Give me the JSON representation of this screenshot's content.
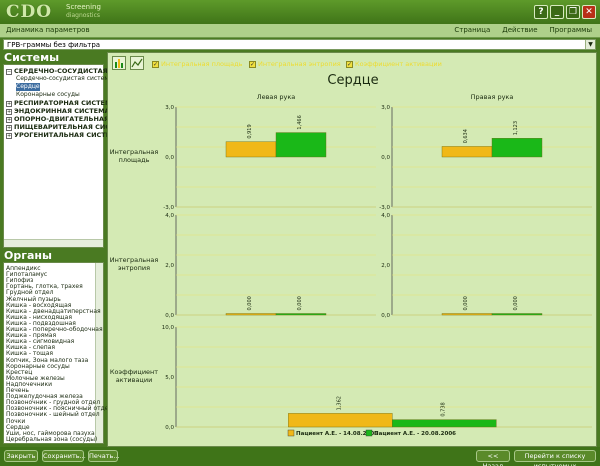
{
  "app": {
    "logo_text": "CDO",
    "logo_sub_top": "Screening",
    "logo_sub_bottom": "diagnostics",
    "window_title": "Динамика параметров",
    "menus": [
      "Страница",
      "Действие",
      "Программы"
    ],
    "window_buttons": {
      "help": "?",
      "minimize": "_",
      "restore": "❐",
      "close": "✕"
    }
  },
  "filter": {
    "value": "ГРВ-граммы без фильтра"
  },
  "sidebar": {
    "systems_title": "Системы",
    "systems": [
      {
        "label": "СЕРДЕЧНО-СОСУДИСТАЯ СИС",
        "expanded": true,
        "children": [
          {
            "label": "Сердечно-сосудистая система",
            "selected": false
          },
          {
            "label": "Сердце",
            "selected": true
          },
          {
            "label": "Коронарные сосуды",
            "selected": false
          }
        ]
      },
      {
        "label": "РЕСПИРАТОРНАЯ СИСТЕМА",
        "expanded": false
      },
      {
        "label": "ЭНДОКРИННАЯ СИСТЕМА",
        "expanded": false
      },
      {
        "label": "ОПОРНО-ДВИГАТЕЛЬНАЯ СИС",
        "expanded": false
      },
      {
        "label": "ПИЩЕВАРИТЕЛЬНАЯ СИСТЕМ",
        "expanded": false
      },
      {
        "label": "УРОГЕНИТАЛЬНАЯ СИСТЕМА",
        "expanded": false
      }
    ],
    "organs_title": "Органы",
    "organs": [
      "Аппендикс",
      "Гипоталамус",
      "Гипофиз",
      "Гортань, глотка, трахея",
      "Грудной отдел",
      "Желчный пузырь",
      "Кишка - восходящая",
      "Кишка - двенадцатиперстная",
      "Кишка - нисходящая",
      "Кишка - подвздошная",
      "Кишка - поперечно-ободочная",
      "Кишка - прямая",
      "Кишка - сигмовидная",
      "Кишка - слепая",
      "Кишка - тощая",
      "Копчик, Зона малого таза",
      "Коронарные сосуды",
      "Крестец",
      "Молочные железы",
      "Надпочечники",
      "Печень",
      "Поджелудочная железа",
      "Позвоночник - грудной отдел",
      "Позвоночник - поясничный отдел",
      "Позвоночник - шейный отдел",
      "Почки",
      "Сердце",
      "Уши, нос, гайморова пазуха",
      "Церебральная зона (сосуды)"
    ]
  },
  "toolbar": {
    "checkboxes": [
      "Интегральная площадь",
      "Интегральная энтропия",
      "Коэффициент активации"
    ],
    "checkbox_color": "#eedc30"
  },
  "chart_data": {
    "type": "bar",
    "title": "Сердце",
    "columns": [
      "Левая рука",
      "Правая рука"
    ],
    "row_labels": [
      "Интегральная площадь",
      "Интегральная энтропия",
      "Коэффициент активации"
    ],
    "series": [
      {
        "name": "Пациент А.Е. - 14.08.2006",
        "color": "#f0b818"
      },
      {
        "name": "Пациент А.Е. - 20.08.2006",
        "color": "#1ab818"
      }
    ],
    "panels": [
      {
        "row": 0,
        "col": 0,
        "ylim": [
          -3.0,
          3.0
        ],
        "ticks": [
          "3,0",
          "0,0",
          "-3,0"
        ],
        "values": [
          0.919,
          1.466
        ],
        "labels": [
          "0,919",
          "1,466"
        ]
      },
      {
        "row": 0,
        "col": 1,
        "ylim": [
          -3.0,
          3.0
        ],
        "ticks": [
          "3,0",
          "0,0",
          "-3,0"
        ],
        "values": [
          0.634,
          1.123
        ],
        "labels": [
          "0,634",
          "1,123"
        ]
      },
      {
        "row": 1,
        "col": 0,
        "ylim": [
          0,
          4.0
        ],
        "ticks": [
          "4,0",
          "2,0",
          "0,0"
        ],
        "values": [
          0.0,
          0.0
        ],
        "labels": [
          "0,000",
          "0,000"
        ]
      },
      {
        "row": 1,
        "col": 1,
        "ylim": [
          0,
          4.0
        ],
        "ticks": [
          "4,0",
          "2,0",
          "0,0"
        ],
        "values": [
          0.0,
          0.0
        ],
        "labels": [
          "0,000",
          "0,000"
        ]
      },
      {
        "row": 2,
        "col": "full",
        "ylim": [
          0,
          10.0
        ],
        "ticks": [
          "10,0",
          "5,0",
          "0,0"
        ],
        "values": [
          1.362,
          0.738
        ],
        "labels": [
          "1,362",
          "0,738"
        ]
      }
    ],
    "grid": true,
    "legend": "bottom"
  },
  "footer": {
    "buttons_left": [
      "Закрыть",
      "Сохранить...",
      "Печать..."
    ],
    "buttons_right": [
      "<< Назад",
      "Перейти к списку испытуемых"
    ]
  }
}
